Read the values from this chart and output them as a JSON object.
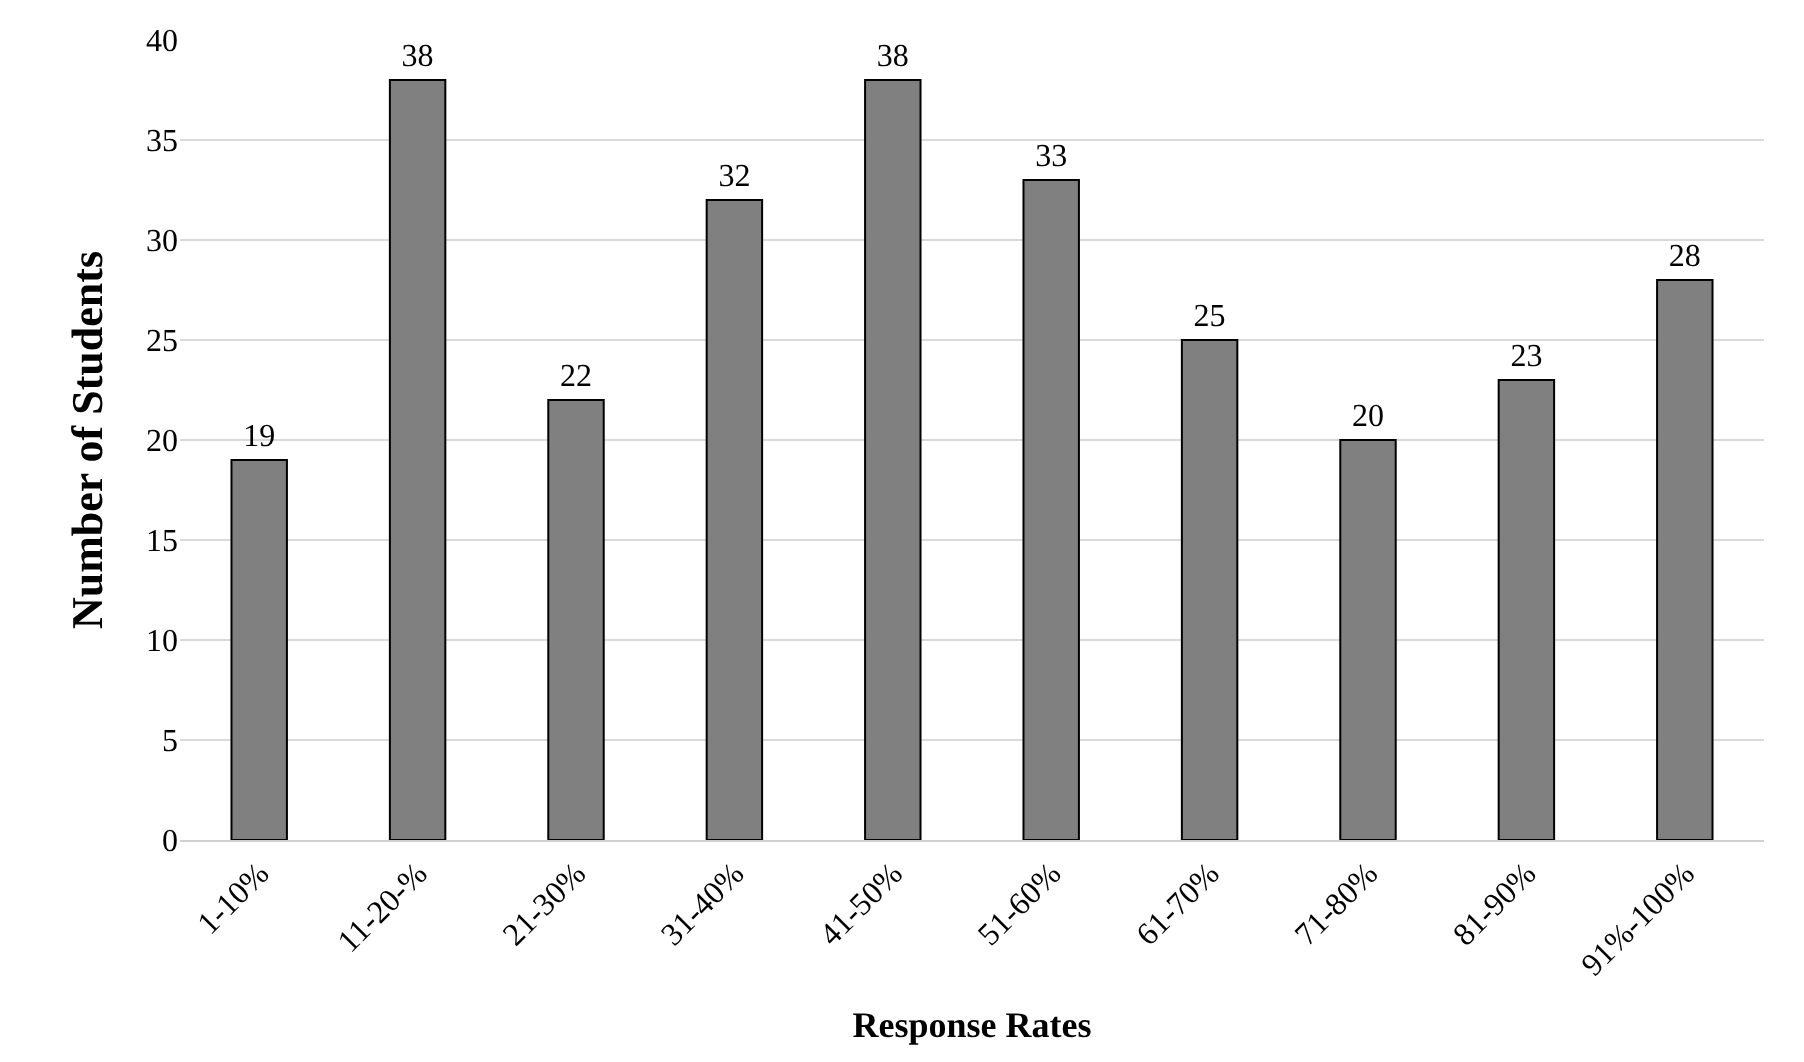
{
  "chart_data": {
    "type": "bar",
    "xlabel": "Response Rates",
    "ylabel": "Number of Students",
    "categories": [
      "1-10%",
      "11-20-%",
      "21-30%",
      "31-40%",
      "41-50%",
      "51-60%",
      "61-70%",
      "71-80%",
      "81-90%",
      "91%-100%"
    ],
    "values": [
      19,
      38,
      22,
      32,
      38,
      33,
      25,
      20,
      23,
      28
    ],
    "color": "#808080",
    "data_labels": true,
    "ylim": [
      0,
      40
    ],
    "yticks": [
      0,
      5,
      10,
      15,
      20,
      25,
      30,
      35,
      40
    ],
    "grid": "y"
  }
}
